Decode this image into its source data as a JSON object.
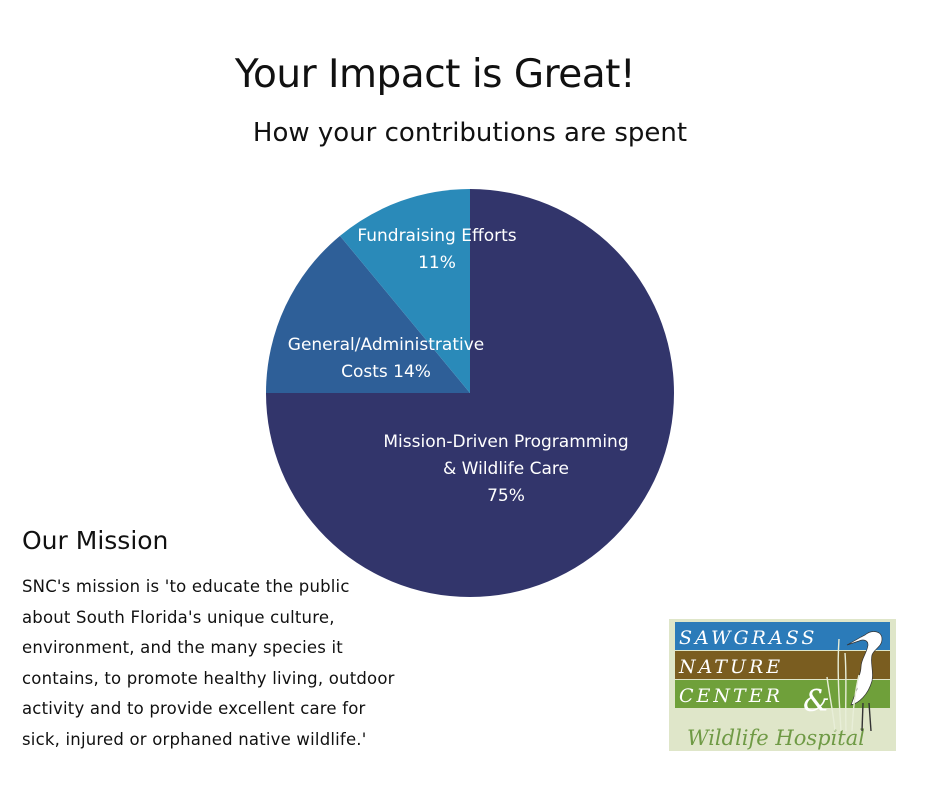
{
  "header": {
    "title": "Your Impact is Great!",
    "subtitle": "How your contributions are spent"
  },
  "chart_data": {
    "type": "pie",
    "title": "How your contributions are spent",
    "slices": [
      {
        "label_lines": [
          "Mission-Driven Programming",
          "& Wildlife Care",
          "75%"
        ],
        "value": 75,
        "color": "#32356b"
      },
      {
        "label_lines": [
          "General/Administrative",
          "Costs 14%"
        ],
        "value": 14,
        "color": "#2e5f98"
      },
      {
        "label_lines": [
          "Fundraising Efforts",
          "11%"
        ],
        "value": 11,
        "color": "#2a8ab9"
      }
    ]
  },
  "mission": {
    "heading": "Our Mission",
    "lines": [
      "SNC's mission is 'to educate the public",
      "about South Florida's unique culture,",
      "environment, and the many species it",
      "contains, to promote healthy living, outdoor",
      "activity and to provide excellent care for",
      "sick, injured or orphaned native wildlife.'"
    ]
  },
  "logo": {
    "line1": "SAWGRASS",
    "line2": "NATURE",
    "line3": "CENTER",
    "ampersand": "&",
    "line4": "Wildlife Hospital",
    "colors": {
      "band_blue": "#2b7bb9",
      "band_brown": "#7a5d20",
      "band_green": "#6fa03a",
      "background": "#dfe6c9",
      "script_text": "#6f9a45"
    }
  }
}
